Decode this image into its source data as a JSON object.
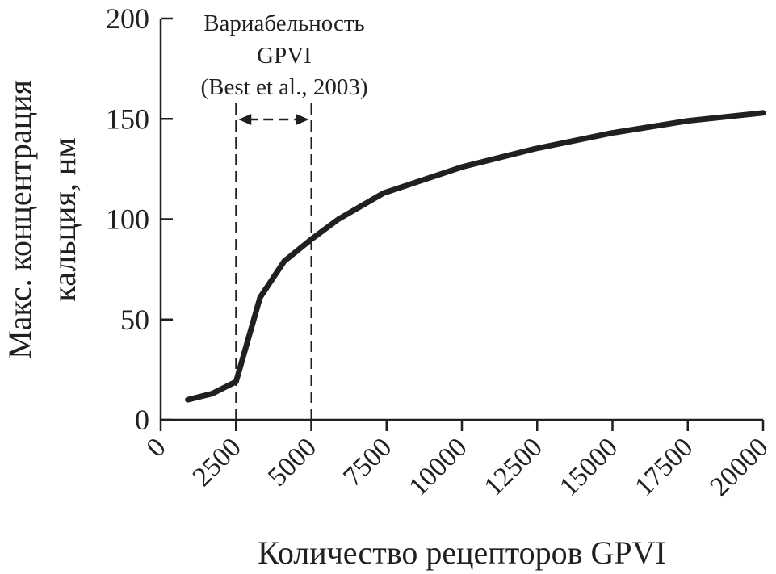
{
  "chart_data": {
    "type": "line",
    "title": "",
    "xlabel": "Количество рецепторов GPVI",
    "ylabel_lines": [
      "Макс. концентрация",
      "кальция, нм"
    ],
    "xlim": [
      0,
      20000
    ],
    "ylim": [
      0,
      200
    ],
    "x_ticks": [
      0,
      2500,
      5000,
      7500,
      10000,
      12500,
      15000,
      17500,
      20000
    ],
    "y_ticks": [
      0,
      50,
      100,
      150,
      200
    ],
    "grid": false,
    "line_color": "#231f20",
    "series": [
      {
        "x": [
          900,
          1700,
          2500,
          3300,
          4100,
          5000,
          5900,
          7400,
          10000,
          12400,
          15000,
          17500,
          20000
        ],
        "y": [
          10,
          13,
          19,
          61,
          79,
          90,
          100,
          113,
          126,
          135,
          143,
          149,
          153
        ]
      }
    ],
    "annotation": {
      "text_lines": [
        "Вариабельность",
        "GPVI",
        "(Best et al., 2003)"
      ],
      "range_x": [
        2500,
        5000
      ]
    }
  }
}
